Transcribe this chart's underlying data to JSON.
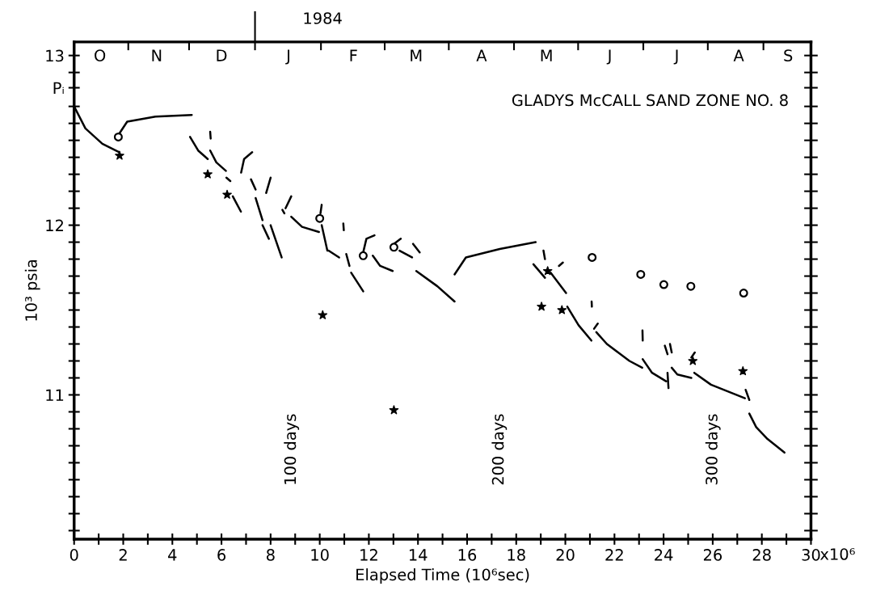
{
  "chart_data": {
    "type": "line",
    "title": "GLADYS McCALL SAND ZONE NO. 8",
    "xlabel": "Elapsed Time (10⁶sec)",
    "ylabel": "10³ psia",
    "xlim": [
      0,
      30
    ],
    "ylim": [
      10.15,
      13.08
    ],
    "xticks": [
      0,
      {
        "value": 1,
        "label": null
      },
      2,
      {
        "value": 3,
        "label": null
      },
      4,
      {
        "value": 5,
        "label": null
      },
      6,
      {
        "value": 7,
        "label": null
      },
      8,
      {
        "value": 9,
        "label": null
      },
      10,
      {
        "value": 11,
        "label": null
      },
      12,
      {
        "value": 13,
        "label": null
      },
      14,
      {
        "value": 15,
        "label": null
      },
      16,
      {
        "value": 17,
        "label": null
      },
      18,
      {
        "value": 19,
        "label": null
      },
      20,
      {
        "value": 21,
        "label": null
      },
      22,
      {
        "value": 23,
        "label": null
      },
      24,
      {
        "value": 25,
        "label": null
      },
      26,
      {
        "value": 27,
        "label": null
      },
      28,
      {
        "value": 29,
        "label": null
      },
      30
    ],
    "yticks": [
      {
        "value": 10.2,
        "label": null
      },
      {
        "value": 10.3,
        "label": null
      },
      {
        "value": 10.4,
        "label": null
      },
      {
        "value": 10.5,
        "label": null
      },
      {
        "value": 10.6,
        "label": null
      },
      {
        "value": 10.7,
        "label": null
      },
      {
        "value": 10.8,
        "label": null
      },
      {
        "value": 10.9,
        "label": null
      },
      11,
      {
        "value": 11.1,
        "label": null
      },
      {
        "value": 11.2,
        "label": null
      },
      {
        "value": 11.3,
        "label": null
      },
      {
        "value": 11.4,
        "label": null
      },
      {
        "value": 11.5,
        "label": null
      },
      {
        "value": 11.6,
        "label": null
      },
      {
        "value": 11.7,
        "label": null
      },
      {
        "value": 11.8,
        "label": null
      },
      {
        "value": 11.9,
        "label": null
      },
      12,
      {
        "value": 12.1,
        "label": null
      },
      {
        "value": 12.2,
        "label": null
      },
      {
        "value": 12.3,
        "label": null
      },
      {
        "value": 12.4,
        "label": null
      },
      {
        "value": 12.5,
        "label": null
      },
      {
        "value": 12.6,
        "label": null
      },
      {
        "value": 12.7,
        "label": null
      },
      {
        "value": 12.81,
        "label": "Pᵢ"
      },
      {
        "value": 12.9,
        "label": null
      },
      13
    ],
    "annotations": [
      "1984",
      "x10⁶",
      "100 days",
      "200 days",
      "300 days",
      "O",
      "N",
      "D",
      "J",
      "F",
      "M",
      "A",
      "M",
      "J",
      "J",
      "A",
      "S"
    ],
    "grid": false,
    "legend": false,
    "series": [
      {
        "color": "#000000",
        "marker": "none",
        "line_style": "solid",
        "x": [
          0,
          0.46,
          1.15,
          1.84,
          null,
          1.84,
          2.16,
          3.31,
          4.79,
          null,
          4.72,
          5.05,
          5.44,
          null,
          5.54,
          5.56,
          null,
          5.54,
          5.79,
          6.18,
          null,
          6.2,
          6.36,
          null,
          6.46,
          6.79,
          null,
          6.8,
          6.92,
          7.25,
          null,
          7.2,
          7.39,
          null,
          7.39,
          7.67,
          null,
          7.67,
          7.93,
          null,
          7.82,
          8.0,
          null,
          8.0,
          8.45,
          null,
          8.48,
          8.56,
          null,
          8.61,
          8.84,
          null,
          8.84,
          9.28,
          9.97,
          null,
          10.03,
          10.08,
          null,
          10.08,
          10.31,
          null,
          10.36,
          10.79,
          null,
          10.96,
          10.98,
          null,
          11.08,
          11.21,
          null,
          11.28,
          11.77,
          null,
          11.77,
          11.9,
          12.23,
          null,
          12.16,
          12.46,
          12.97,
          null,
          13.02,
          13.3,
          null,
          13.25,
          13.76,
          null,
          13.8,
          14.07,
          null,
          13.93,
          14.79,
          15.49,
          null,
          15.49,
          15.95,
          17.33,
          18.79,
          null,
          18.7,
          19.17,
          null,
          19.11,
          19.17,
          null,
          19.74,
          19.9,
          null,
          19.4,
          20.03,
          null,
          20.08,
          20.54,
          21.06,
          null,
          21.07,
          21.08,
          null,
          21.17,
          21.32,
          null,
          21.26,
          21.69,
          22.15,
          22.61,
          23.13,
          null,
          23.14,
          23.15,
          null,
          23.15,
          23.53,
          24.1,
          null,
          24.05,
          24.16,
          null,
          24.16,
          24.2,
          null,
          24.26,
          24.33,
          null,
          24.33,
          24.56,
          25.13,
          null,
          25.13,
          25.27,
          null,
          25.25,
          25.93,
          27.31,
          null,
          27.34,
          27.49,
          null,
          27.49,
          27.77,
          28.23,
          28.92
        ],
        "values": [
          12.7,
          12.57,
          12.48,
          12.43,
          null,
          12.54,
          12.61,
          12.64,
          12.65,
          null,
          12.52,
          12.44,
          12.39,
          null,
          12.55,
          12.51,
          null,
          12.44,
          12.37,
          12.32,
          null,
          12.28,
          12.26,
          null,
          12.17,
          12.08,
          null,
          12.31,
          12.39,
          12.43,
          null,
          12.27,
          12.21,
          null,
          12.16,
          12.03,
          null,
          12.0,
          11.92,
          null,
          12.19,
          12.28,
          null,
          12.0,
          11.81,
          null,
          12.09,
          12.07,
          null,
          12.1,
          12.17,
          null,
          12.05,
          11.99,
          11.96,
          null,
          12.07,
          12.12,
          null,
          12.0,
          11.85,
          null,
          11.85,
          11.81,
          null,
          12.01,
          11.97,
          null,
          11.83,
          11.76,
          null,
          11.72,
          11.61,
          null,
          11.84,
          11.92,
          11.94,
          null,
          11.82,
          11.76,
          11.73,
          null,
          11.89,
          11.92,
          null,
          11.85,
          11.81,
          null,
          11.89,
          11.84,
          null,
          11.73,
          11.64,
          11.55,
          null,
          11.71,
          11.81,
          11.86,
          11.9,
          null,
          11.77,
          11.69,
          null,
          11.85,
          11.8,
          null,
          11.76,
          11.78,
          null,
          11.72,
          11.6,
          null,
          11.52,
          11.41,
          11.32,
          null,
          11.55,
          11.52,
          null,
          11.39,
          11.42,
          null,
          11.37,
          11.3,
          11.25,
          11.2,
          11.16,
          null,
          11.38,
          11.32,
          null,
          11.21,
          11.13,
          11.08,
          null,
          11.29,
          11.24,
          null,
          11.13,
          11.04,
          null,
          11.3,
          11.25,
          null,
          11.16,
          11.12,
          11.1,
          null,
          11.22,
          11.25,
          null,
          11.13,
          11.06,
          10.98,
          null,
          11.03,
          10.97,
          null,
          10.89,
          10.81,
          10.74,
          10.66
        ]
      },
      {
        "type": "scatter",
        "color": "#000000",
        "marker": "circle",
        "x": [
          1.8,
          10.0,
          11.77,
          13.02,
          21.09,
          23.07,
          24.01,
          25.11,
          27.26
        ],
        "values": [
          12.52,
          12.04,
          11.82,
          11.87,
          11.81,
          11.71,
          11.65,
          11.64,
          11.6
        ]
      },
      {
        "type": "scatter",
        "color": "#000000",
        "marker": "star",
        "x": [
          1.85,
          5.44,
          6.23,
          10.12,
          13.02,
          19.03,
          19.28,
          19.86,
          25.19,
          27.23
        ],
        "values": [
          12.41,
          12.3,
          12.18,
          11.47,
          10.91,
          11.52,
          11.73,
          11.5,
          11.2,
          11.14
        ]
      }
    ]
  }
}
